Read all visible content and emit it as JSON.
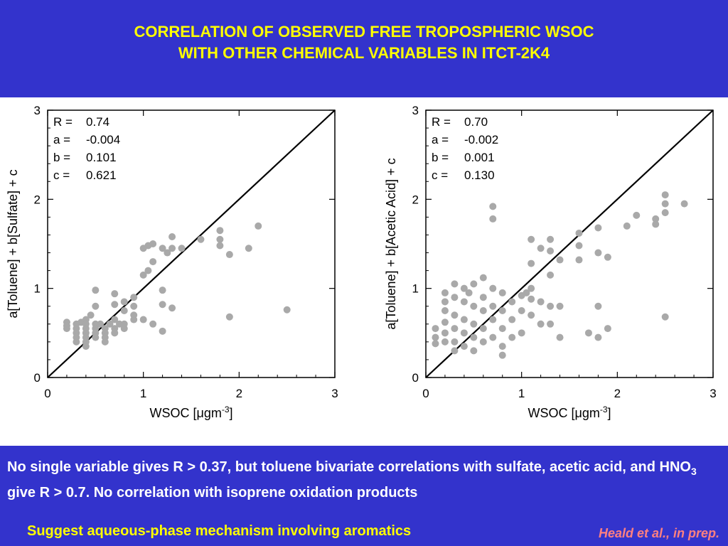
{
  "title": {
    "line1": "CORRELATION OF OBSERVED FREE TROPOSPHERIC WSOC",
    "line2": "WITH OTHER CHEMICAL VARIABLES IN ITCT-2K4"
  },
  "description": {
    "text_before_sub": "No single variable gives R > 0.37, but toluene bivariate correlations with sulfate, acetic acid, and HNO",
    "subscript": "3",
    "text_after_sub": " give R > 0.7. No correlation with isoprene oxidation products"
  },
  "suggestion": "Suggest aqueous-phase mechanism involving aromatics",
  "citation": "Heald et al., in prep.",
  "colors": {
    "background": "#3333cc",
    "title": "#ffff00",
    "suggestion": "#ffff00",
    "citation": "#ff8080",
    "points": "#a9a9a9"
  },
  "chart_data": [
    {
      "type": "scatter",
      "xlabel": "WSOC [μgm-3]",
      "ylabel": "a[Toluene] + b[Sulfate] + c",
      "xlim": [
        0,
        3
      ],
      "ylim": [
        0,
        3
      ],
      "xticks": [
        "0",
        "1",
        "2",
        "3"
      ],
      "yticks": [
        "0",
        "1",
        "2",
        "3"
      ],
      "fit_line": [
        [
          0,
          0
        ],
        [
          3,
          3
        ]
      ],
      "stats": [
        {
          "label": "R =",
          "value": "0.74"
        },
        {
          "label": "a =",
          "value": "-0.004"
        },
        {
          "label": "b =",
          "value": "0.101"
        },
        {
          "label": "c =",
          "value": "0.621"
        }
      ],
      "points": [
        [
          0.2,
          0.62
        ],
        [
          0.2,
          0.58
        ],
        [
          0.2,
          0.55
        ],
        [
          0.3,
          0.6
        ],
        [
          0.3,
          0.55
        ],
        [
          0.3,
          0.5
        ],
        [
          0.3,
          0.45
        ],
        [
          0.3,
          0.4
        ],
        [
          0.35,
          0.62
        ],
        [
          0.4,
          0.65
        ],
        [
          0.4,
          0.6
        ],
        [
          0.4,
          0.55
        ],
        [
          0.4,
          0.5
        ],
        [
          0.4,
          0.45
        ],
        [
          0.4,
          0.4
        ],
        [
          0.4,
          0.35
        ],
        [
          0.45,
          0.7
        ],
        [
          0.5,
          0.6
        ],
        [
          0.5,
          0.55
        ],
        [
          0.5,
          0.5
        ],
        [
          0.5,
          0.45
        ],
        [
          0.5,
          0.8
        ],
        [
          0.5,
          0.98
        ],
        [
          0.55,
          0.6
        ],
        [
          0.6,
          0.55
        ],
        [
          0.6,
          0.5
        ],
        [
          0.6,
          0.45
        ],
        [
          0.6,
          0.4
        ],
        [
          0.65,
          0.6
        ],
        [
          0.7,
          0.65
        ],
        [
          0.7,
          0.55
        ],
        [
          0.7,
          0.5
        ],
        [
          0.7,
          0.82
        ],
        [
          0.7,
          0.94
        ],
        [
          0.75,
          0.6
        ],
        [
          0.8,
          0.55
        ],
        [
          0.8,
          0.6
        ],
        [
          0.8,
          0.75
        ],
        [
          0.8,
          0.85
        ],
        [
          0.9,
          0.9
        ],
        [
          0.9,
          0.8
        ],
        [
          0.9,
          0.7
        ],
        [
          0.9,
          0.65
        ],
        [
          1.0,
          0.65
        ],
        [
          1.0,
          1.15
        ],
        [
          1.0,
          1.45
        ],
        [
          1.05,
          1.48
        ],
        [
          1.05,
          1.2
        ],
        [
          1.1,
          0.6
        ],
        [
          1.1,
          1.3
        ],
        [
          1.1,
          1.5
        ],
        [
          1.2,
          0.52
        ],
        [
          1.2,
          0.82
        ],
        [
          1.2,
          0.98
        ],
        [
          1.2,
          1.45
        ],
        [
          1.25,
          1.4
        ],
        [
          1.3,
          0.78
        ],
        [
          1.3,
          1.45
        ],
        [
          1.3,
          1.58
        ],
        [
          1.4,
          1.45
        ],
        [
          1.6,
          1.55
        ],
        [
          1.8,
          1.65
        ],
        [
          1.8,
          1.55
        ],
        [
          1.8,
          1.48
        ],
        [
          1.9,
          1.38
        ],
        [
          1.9,
          0.68
        ],
        [
          2.1,
          1.45
        ],
        [
          2.2,
          1.7
        ],
        [
          2.5,
          0.76
        ]
      ]
    },
    {
      "type": "scatter",
      "xlabel": "WSOC [μgm-3]",
      "ylabel": "a[Toluene] + b[Acetic Acid] + c",
      "xlim": [
        0,
        3
      ],
      "ylim": [
        0,
        3
      ],
      "xticks": [
        "0",
        "1",
        "2",
        "3"
      ],
      "yticks": [
        "0",
        "1",
        "2",
        "3"
      ],
      "fit_line": [
        [
          0,
          0
        ],
        [
          3,
          3
        ]
      ],
      "stats": [
        {
          "label": "R =",
          "value": "0.70"
        },
        {
          "label": "a =",
          "value": "-0.002"
        },
        {
          "label": "b =",
          "value": "0.001"
        },
        {
          "label": "c =",
          "value": "0.130"
        }
      ],
      "points": [
        [
          0.1,
          0.55
        ],
        [
          0.1,
          0.45
        ],
        [
          0.1,
          0.38
        ],
        [
          0.2,
          0.75
        ],
        [
          0.2,
          0.62
        ],
        [
          0.2,
          0.5
        ],
        [
          0.2,
          0.4
        ],
        [
          0.2,
          0.85
        ],
        [
          0.2,
          0.95
        ],
        [
          0.3,
          1.05
        ],
        [
          0.3,
          0.9
        ],
        [
          0.3,
          0.7
        ],
        [
          0.3,
          0.55
        ],
        [
          0.3,
          0.4
        ],
        [
          0.3,
          0.3
        ],
        [
          0.4,
          1.0
        ],
        [
          0.4,
          0.85
        ],
        [
          0.4,
          0.65
        ],
        [
          0.4,
          0.5
        ],
        [
          0.4,
          0.35
        ],
        [
          0.45,
          0.95
        ],
        [
          0.5,
          1.05
        ],
        [
          0.5,
          0.8
        ],
        [
          0.5,
          0.6
        ],
        [
          0.5,
          0.45
        ],
        [
          0.5,
          0.3
        ],
        [
          0.6,
          1.12
        ],
        [
          0.6,
          0.9
        ],
        [
          0.6,
          0.75
        ],
        [
          0.6,
          0.55
        ],
        [
          0.6,
          0.4
        ],
        [
          0.7,
          1.92
        ],
        [
          0.7,
          1.78
        ],
        [
          0.7,
          1.0
        ],
        [
          0.7,
          0.8
        ],
        [
          0.7,
          0.65
        ],
        [
          0.7,
          0.45
        ],
        [
          0.8,
          0.95
        ],
        [
          0.8,
          0.75
        ],
        [
          0.8,
          0.55
        ],
        [
          0.8,
          0.35
        ],
        [
          0.8,
          0.25
        ],
        [
          0.9,
          0.85
        ],
        [
          0.9,
          0.65
        ],
        [
          0.9,
          0.45
        ],
        [
          1.0,
          0.92
        ],
        [
          1.0,
          0.75
        ],
        [
          1.0,
          0.5
        ],
        [
          1.05,
          0.95
        ],
        [
          1.1,
          1.55
        ],
        [
          1.1,
          1.28
        ],
        [
          1.1,
          1.0
        ],
        [
          1.1,
          0.88
        ],
        [
          1.1,
          0.7
        ],
        [
          1.2,
          1.45
        ],
        [
          1.2,
          0.85
        ],
        [
          1.2,
          0.6
        ],
        [
          1.3,
          1.55
        ],
        [
          1.3,
          1.42
        ],
        [
          1.3,
          1.15
        ],
        [
          1.3,
          0.8
        ],
        [
          1.3,
          0.6
        ],
        [
          1.4,
          1.32
        ],
        [
          1.4,
          0.8
        ],
        [
          1.4,
          0.45
        ],
        [
          1.6,
          1.62
        ],
        [
          1.6,
          1.48
        ],
        [
          1.6,
          1.32
        ],
        [
          1.7,
          0.5
        ],
        [
          1.8,
          1.68
        ],
        [
          1.8,
          1.4
        ],
        [
          1.8,
          0.8
        ],
        [
          1.8,
          0.45
        ],
        [
          1.9,
          1.35
        ],
        [
          1.9,
          0.55
        ],
        [
          2.1,
          1.7
        ],
        [
          2.2,
          1.82
        ],
        [
          2.4,
          1.78
        ],
        [
          2.4,
          1.72
        ],
        [
          2.5,
          2.05
        ],
        [
          2.5,
          1.95
        ],
        [
          2.5,
          1.85
        ],
        [
          2.5,
          0.68
        ],
        [
          2.7,
          1.95
        ]
      ]
    }
  ]
}
